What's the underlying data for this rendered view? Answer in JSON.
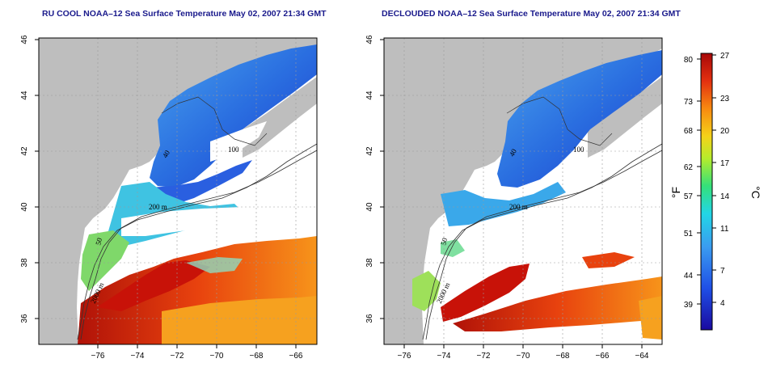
{
  "panels": [
    {
      "title": "RU COOL NOAA–12 Sea Surface Temperature May 02, 2007 21:34 GMT"
    },
    {
      "title": "DECLOUDED NOAA–12 Sea Surface Temperature May 02, 2007 21:34 GMT"
    }
  ],
  "axes": {
    "x_ticks": [
      "−76",
      "−74",
      "−72",
      "−70",
      "−68",
      "−66",
      "−64"
    ],
    "y_ticks": [
      "46",
      "44",
      "42",
      "40",
      "38",
      "36"
    ]
  },
  "contour_labels": {
    "isobath_100": "100",
    "isobath_200": "200 m",
    "isobath_2000": "2000 m",
    "isobath_50": "50",
    "isobath_40": "40"
  },
  "colorbar": {
    "celsius_label": "°C",
    "fahrenheit_label": "°F",
    "celsius_ticks": [
      "27",
      "23",
      "20",
      "17",
      "14",
      "11",
      "7",
      "4"
    ],
    "fahrenheit_ticks": [
      "80",
      "73",
      "68",
      "62",
      "57",
      "51",
      "44",
      "39"
    ]
  },
  "colors": {
    "land": "#bebebe",
    "cloud": "#ffffff",
    "title": "#1a1a8c"
  }
}
